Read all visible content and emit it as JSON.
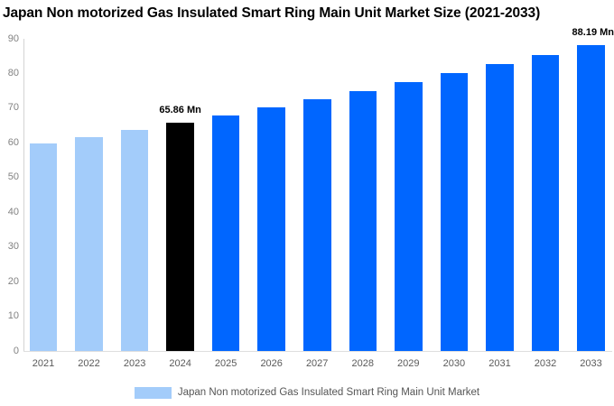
{
  "title": "Japan Non motorized Gas Insulated Smart Ring Main Unit Market Size (2021-2033)",
  "chart_data": {
    "type": "bar",
    "title": "Japan Non motorized Gas Insulated Smart Ring Main Unit Market Size (2021-2033)",
    "categories": [
      "2021",
      "2022",
      "2023",
      "2024",
      "2025",
      "2026",
      "2027",
      "2028",
      "2029",
      "2030",
      "2031",
      "2032",
      "2033"
    ],
    "values": [
      59.76,
      61.73,
      63.77,
      65.86,
      68.03,
      70.27,
      72.59,
      74.98,
      77.45,
      80.01,
      82.64,
      85.37,
      88.19
    ],
    "bar_roles": [
      "historical",
      "historical",
      "historical",
      "base",
      "forecast",
      "forecast",
      "forecast",
      "forecast",
      "forecast",
      "forecast",
      "forecast",
      "forecast",
      "forecast"
    ],
    "unit": "Mn",
    "xlabel": "",
    "ylabel": "",
    "ylim": [
      0,
      90
    ],
    "yticks": [
      0,
      10,
      20,
      30,
      40,
      50,
      60,
      70,
      80,
      90
    ],
    "grid": false,
    "annotations": [
      {
        "category": "2024",
        "text": "65.86 Mn",
        "align": "center"
      },
      {
        "category": "2033",
        "text": "88.19 Mn",
        "align": "right"
      }
    ],
    "legend": {
      "label": "Japan Non motorized Gas Insulated Smart Ring Main Unit Market",
      "position": "bottom"
    }
  },
  "colors": {
    "historical": "#a3ccfa",
    "base": "#000000",
    "forecast": "#0066ff",
    "legend_swatch": "#a3ccfa",
    "axis": "#d4d4d4",
    "tick_text": "#828282"
  }
}
